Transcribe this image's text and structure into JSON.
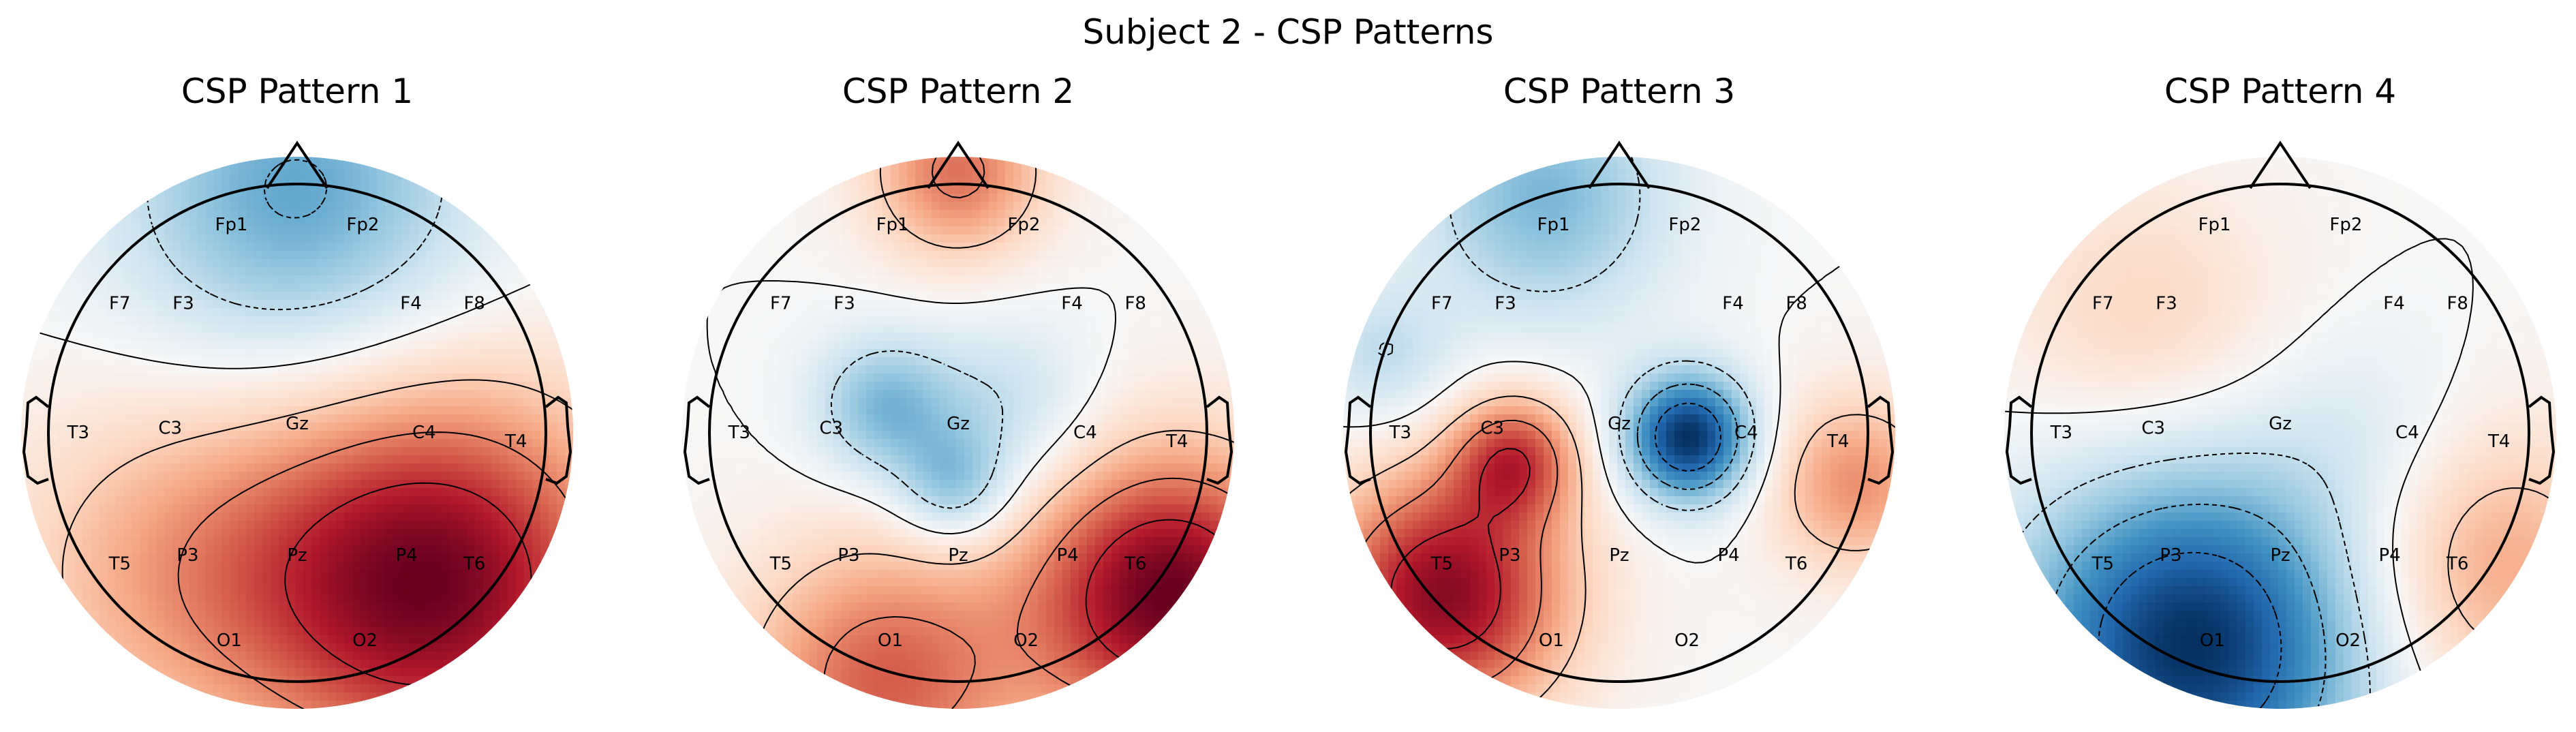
{
  "figure": {
    "title": "Subject 2 - CSP Patterns"
  },
  "colors": {
    "negative_extreme": "#053061",
    "negative": "#4393c3",
    "neutral": "#f7f7f7",
    "positive": "#d6604d",
    "positive_extreme": "#67001f",
    "outline": "#000000"
  },
  "chart_data": [
    {
      "type": "heatmap",
      "subtype": "topomap",
      "title": "CSP Pattern 1",
      "colormap": "RdBu_r",
      "electrodes": [
        "Fp1",
        "Fp2",
        "F7",
        "F3",
        "F4",
        "F8",
        "T3",
        "C3",
        "Gz",
        "C4",
        "T4",
        "T5",
        "P3",
        "Pz",
        "P4",
        "T6",
        "O1",
        "O2"
      ],
      "sources": [
        {
          "u": 0.55,
          "v": 0.6,
          "w": 1.0,
          "s": 0.55
        },
        {
          "u": 0.0,
          "v": -0.95,
          "w": -0.55,
          "s": 0.5
        },
        {
          "u": -0.5,
          "v": 0.55,
          "w": 0.35,
          "s": 0.5
        }
      ]
    },
    {
      "type": "heatmap",
      "subtype": "topomap",
      "title": "CSP Pattern 2",
      "colormap": "RdBu_r",
      "electrodes": [
        "Fp1",
        "Fp2",
        "F7",
        "F3",
        "F4",
        "F8",
        "T3",
        "C3",
        "Gz",
        "C4",
        "T4",
        "T5",
        "P3",
        "Pz",
        "P4",
        "T6",
        "O1",
        "O2"
      ],
      "sources": [
        {
          "u": -0.3,
          "v": -0.1,
          "w": -0.45,
          "s": 0.2
        },
        {
          "u": -0.02,
          "v": 0.22,
          "w": -0.4,
          "s": 0.16
        },
        {
          "u": 0.2,
          "v": -0.1,
          "w": -0.25,
          "s": 0.25
        },
        {
          "u": 0.85,
          "v": 0.65,
          "w": 1.0,
          "s": 0.4
        },
        {
          "u": -0.3,
          "v": 1.0,
          "w": 0.6,
          "s": 0.4
        },
        {
          "u": 0.0,
          "v": -1.05,
          "w": 0.55,
          "s": 0.25
        }
      ]
    },
    {
      "type": "heatmap",
      "subtype": "topomap",
      "title": "CSP Pattern 3",
      "colormap": "RdBu_r",
      "electrodes": [
        "Fp1",
        "Fp2",
        "F7",
        "F3",
        "F4",
        "F8",
        "T3",
        "C3",
        "Gz",
        "C4",
        "T4",
        "T5",
        "P3",
        "Pz",
        "P4",
        "T6",
        "O1",
        "O2"
      ],
      "sources": [
        {
          "u": 0.28,
          "v": 0.02,
          "w": -1.0,
          "s": 0.18
        },
        {
          "u": -0.42,
          "v": 0.1,
          "w": 0.6,
          "s": 0.18
        },
        {
          "u": -0.7,
          "v": 0.65,
          "w": 0.9,
          "s": 0.35
        },
        {
          "u": 0.95,
          "v": 0.2,
          "w": 0.45,
          "s": 0.25
        },
        {
          "u": -0.3,
          "v": -0.95,
          "w": -0.45,
          "s": 0.35
        },
        {
          "u": -0.95,
          "v": -0.3,
          "w": -0.25,
          "s": 0.2
        }
      ]
    },
    {
      "type": "heatmap",
      "subtype": "topomap",
      "title": "CSP Pattern 4",
      "colormap": "RdBu_r",
      "electrodes": [
        "Fp1",
        "Fp2",
        "F7",
        "F3",
        "F4",
        "F8",
        "T3",
        "C3",
        "Gz",
        "C4",
        "T4",
        "T5",
        "P3",
        "Pz",
        "P4",
        "T6",
        "O1",
        "O2"
      ],
      "sources": [
        {
          "u": -0.35,
          "v": 0.85,
          "w": -1.0,
          "s": 0.5
        },
        {
          "u": 0.85,
          "v": 0.55,
          "w": 0.4,
          "s": 0.4
        },
        {
          "u": -0.55,
          "v": -0.45,
          "w": 0.22,
          "s": 0.4
        },
        {
          "u": 0.35,
          "v": 0.0,
          "w": -0.12,
          "s": 0.3
        }
      ]
    }
  ]
}
